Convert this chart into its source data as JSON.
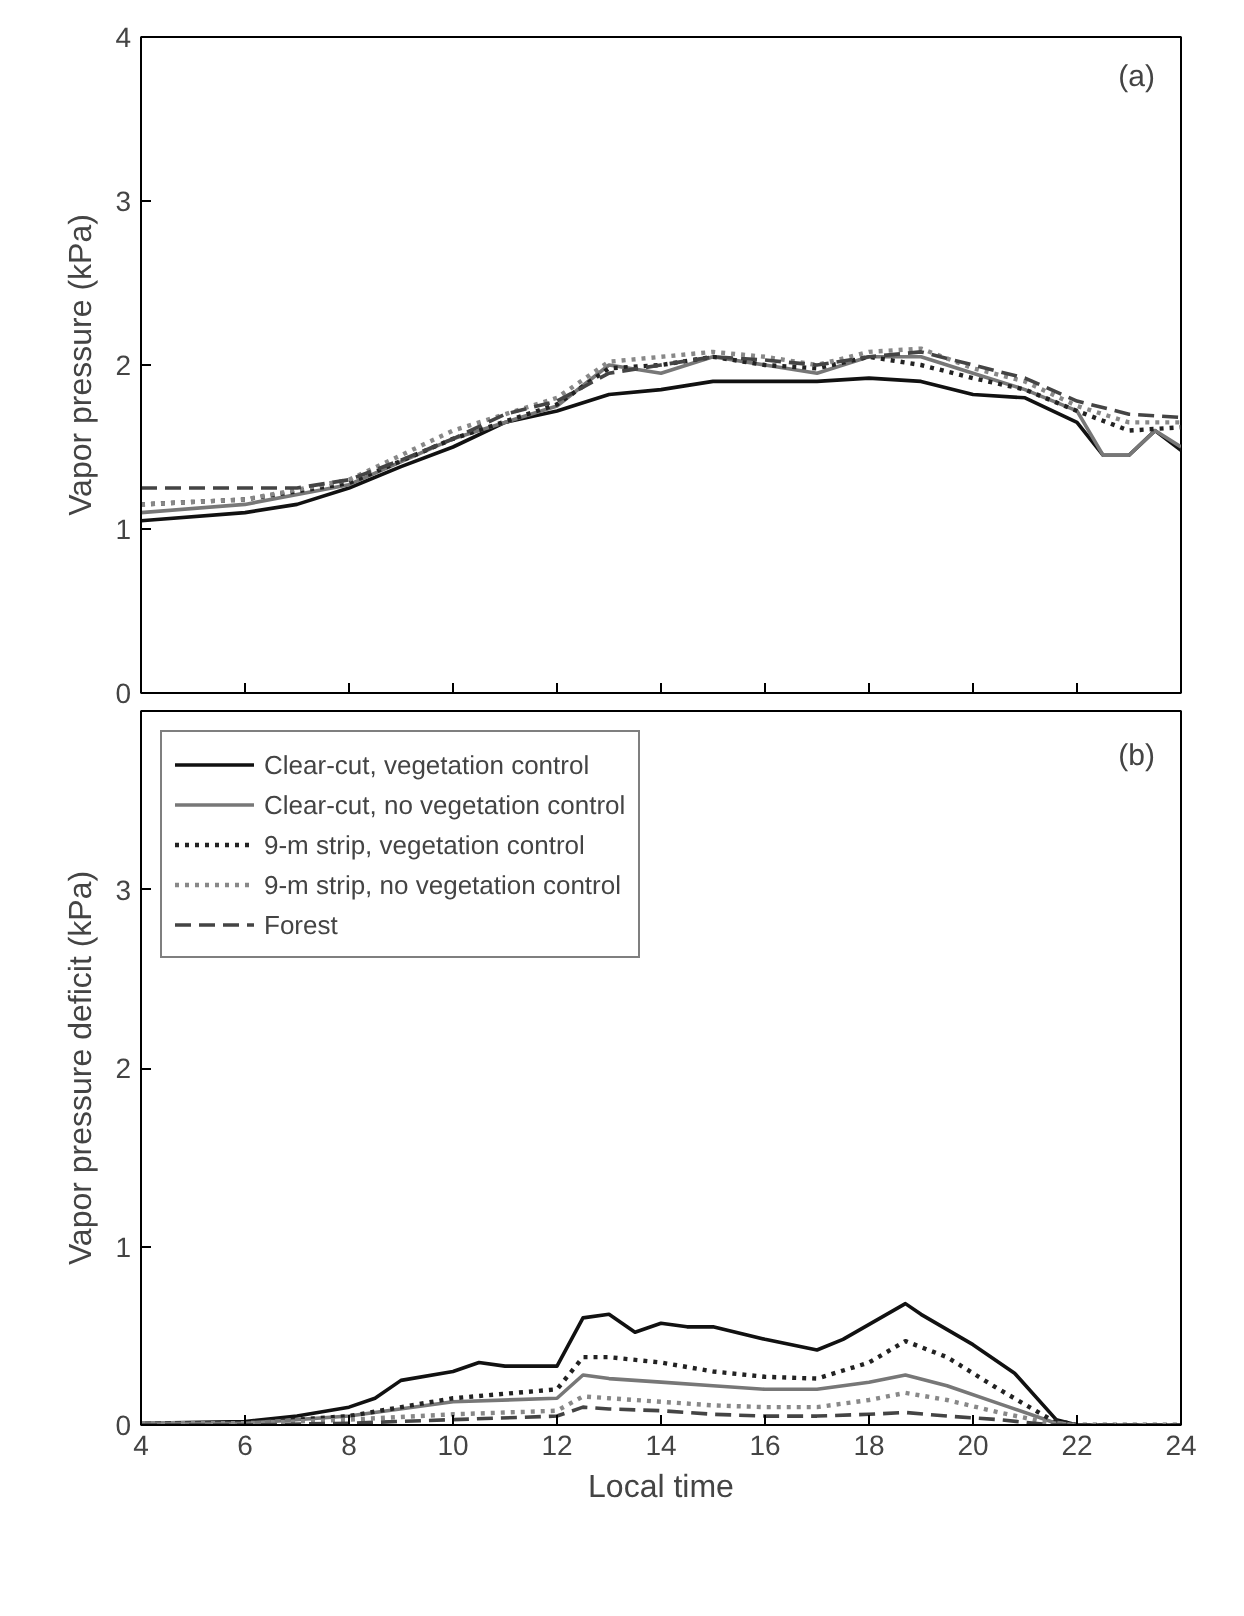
{
  "chart_data": [
    {
      "type": "line",
      "ylabel": "Vapor pressure (kPa)",
      "annotations": [
        "(a)"
      ],
      "xlim": [
        4,
        24
      ],
      "ylim": [
        0,
        4
      ],
      "xticks": [
        4,
        6,
        8,
        10,
        12,
        14,
        16,
        18,
        20,
        22,
        24
      ],
      "yticks": [
        0,
        1,
        2,
        3,
        4
      ],
      "tick_labels": "y",
      "grid": false,
      "legend": false,
      "series": [
        {
          "color": "#111111",
          "line_style": "solid",
          "x": [
            4,
            6,
            7,
            8,
            9,
            10,
            11,
            12,
            13,
            14,
            15,
            16,
            17,
            18,
            19,
            20,
            21,
            22,
            22.5,
            23,
            23.5,
            24
          ],
          "values": [
            1.05,
            1.1,
            1.15,
            1.25,
            1.38,
            1.5,
            1.65,
            1.72,
            1.82,
            1.85,
            1.9,
            1.9,
            1.9,
            1.92,
            1.9,
            1.82,
            1.8,
            1.65,
            1.45,
            1.45,
            1.6,
            1.48
          ]
        },
        {
          "color": "#777777",
          "line_style": "solid",
          "x": [
            4,
            6,
            8,
            10,
            12,
            13,
            14,
            15,
            16,
            17,
            18,
            19,
            20,
            21,
            22,
            22.5,
            23,
            23.5,
            24
          ],
          "values": [
            1.1,
            1.15,
            1.27,
            1.55,
            1.75,
            2.0,
            1.95,
            2.05,
            2.0,
            1.95,
            2.05,
            2.05,
            1.95,
            1.85,
            1.72,
            1.45,
            1.45,
            1.6,
            1.5
          ]
        },
        {
          "color": "#222222",
          "line_style": "dotted",
          "x": [
            4,
            6,
            8,
            10,
            12,
            13,
            14,
            15,
            16,
            17,
            18,
            19,
            20,
            21,
            22,
            23,
            24
          ],
          "values": [
            1.15,
            1.18,
            1.28,
            1.55,
            1.76,
            1.98,
            2.0,
            2.05,
            2.0,
            1.98,
            2.05,
            2.0,
            1.92,
            1.85,
            1.72,
            1.6,
            1.62
          ]
        },
        {
          "color": "#888888",
          "line_style": "dotted",
          "x": [
            4,
            6,
            8,
            10,
            12,
            13,
            14,
            15,
            16,
            17,
            18,
            19,
            20,
            21,
            22,
            23,
            24
          ],
          "values": [
            1.15,
            1.18,
            1.3,
            1.6,
            1.8,
            2.02,
            2.05,
            2.08,
            2.05,
            2.0,
            2.08,
            2.1,
            1.98,
            1.9,
            1.75,
            1.65,
            1.65
          ]
        },
        {
          "color": "#444444",
          "line_style": "dashed",
          "x": [
            4,
            7,
            8,
            9,
            10,
            11,
            12,
            13,
            14,
            15,
            16,
            17,
            18,
            19,
            20,
            21,
            22,
            23,
            24
          ],
          "values": [
            1.25,
            1.25,
            1.3,
            1.42,
            1.55,
            1.7,
            1.78,
            1.95,
            2.0,
            2.05,
            2.03,
            2.0,
            2.05,
            2.08,
            2.0,
            1.92,
            1.78,
            1.7,
            1.68
          ]
        }
      ]
    },
    {
      "type": "line",
      "ylabel": "Vapor pressure deficit (kPa)",
      "xlabel": "Local time",
      "annotations": [
        "(b)"
      ],
      "xlim": [
        4,
        24
      ],
      "ylim": [
        0,
        4
      ],
      "xticks": [
        4,
        6,
        8,
        10,
        12,
        14,
        16,
        18,
        20,
        22,
        24
      ],
      "yticks": [
        0,
        1,
        2,
        3
      ],
      "grid": false,
      "legend": "top left",
      "series": [
        {
          "name": "Clear-cut, vegetation control",
          "color": "#111111",
          "line_style": "solid",
          "x": [
            4,
            6,
            7,
            8,
            8.5,
            9,
            10,
            10.5,
            11,
            12,
            12.5,
            13,
            13.5,
            14,
            14.5,
            15,
            16,
            17,
            17.5,
            18.7,
            19,
            20,
            20.8,
            21.6,
            22,
            24
          ],
          "values": [
            0.01,
            0.02,
            0.05,
            0.1,
            0.15,
            0.25,
            0.3,
            0.35,
            0.33,
            0.33,
            0.6,
            0.62,
            0.52,
            0.57,
            0.55,
            0.55,
            0.48,
            0.42,
            0.48,
            0.68,
            0.62,
            0.45,
            0.29,
            0.03,
            0.0,
            0.0
          ]
        },
        {
          "name": "Clear-cut, no vegetation control",
          "color": "#777777",
          "line_style": "solid",
          "x": [
            4,
            6,
            8,
            10,
            12,
            12.5,
            13,
            14,
            15,
            16,
            17,
            18,
            18.7,
            19.5,
            20.5,
            21.5,
            22,
            24
          ],
          "values": [
            0.01,
            0.01,
            0.05,
            0.13,
            0.15,
            0.28,
            0.26,
            0.24,
            0.22,
            0.2,
            0.2,
            0.24,
            0.28,
            0.22,
            0.12,
            0.02,
            0.0,
            0.0
          ]
        },
        {
          "name": "9-m strip, vegetation control",
          "color": "#222222",
          "line_style": "dotted",
          "x": [
            4,
            6,
            8,
            10,
            12,
            12.5,
            13,
            14,
            15,
            16,
            17,
            18,
            18.7,
            19.5,
            20.5,
            21.5,
            22,
            24
          ],
          "values": [
            0.01,
            0.01,
            0.05,
            0.15,
            0.2,
            0.38,
            0.38,
            0.35,
            0.3,
            0.27,
            0.26,
            0.35,
            0.47,
            0.38,
            0.2,
            0.03,
            0.0,
            0.0
          ]
        },
        {
          "name": "9-m strip, no vegetation control",
          "color": "#888888",
          "line_style": "dotted",
          "x": [
            4,
            6,
            8,
            10,
            12,
            12.5,
            13,
            14,
            15,
            16,
            17,
            18,
            18.7,
            19.5,
            20.5,
            21.5,
            22,
            24
          ],
          "values": [
            0.01,
            0.01,
            0.03,
            0.06,
            0.08,
            0.16,
            0.15,
            0.13,
            0.11,
            0.1,
            0.1,
            0.14,
            0.18,
            0.14,
            0.07,
            0.01,
            0.0,
            0.0
          ]
        },
        {
          "name": "Forest",
          "color": "#444444",
          "line_style": "dashed",
          "x": [
            4,
            6,
            8,
            10,
            12,
            12.5,
            13,
            14,
            15,
            16,
            17,
            18,
            18.7,
            19.5,
            20.5,
            21.5,
            22,
            24
          ],
          "values": [
            0.0,
            0.0,
            0.01,
            0.03,
            0.05,
            0.1,
            0.09,
            0.08,
            0.06,
            0.05,
            0.05,
            0.06,
            0.07,
            0.05,
            0.03,
            0.0,
            0.0,
            0.0
          ]
        }
      ]
    }
  ]
}
